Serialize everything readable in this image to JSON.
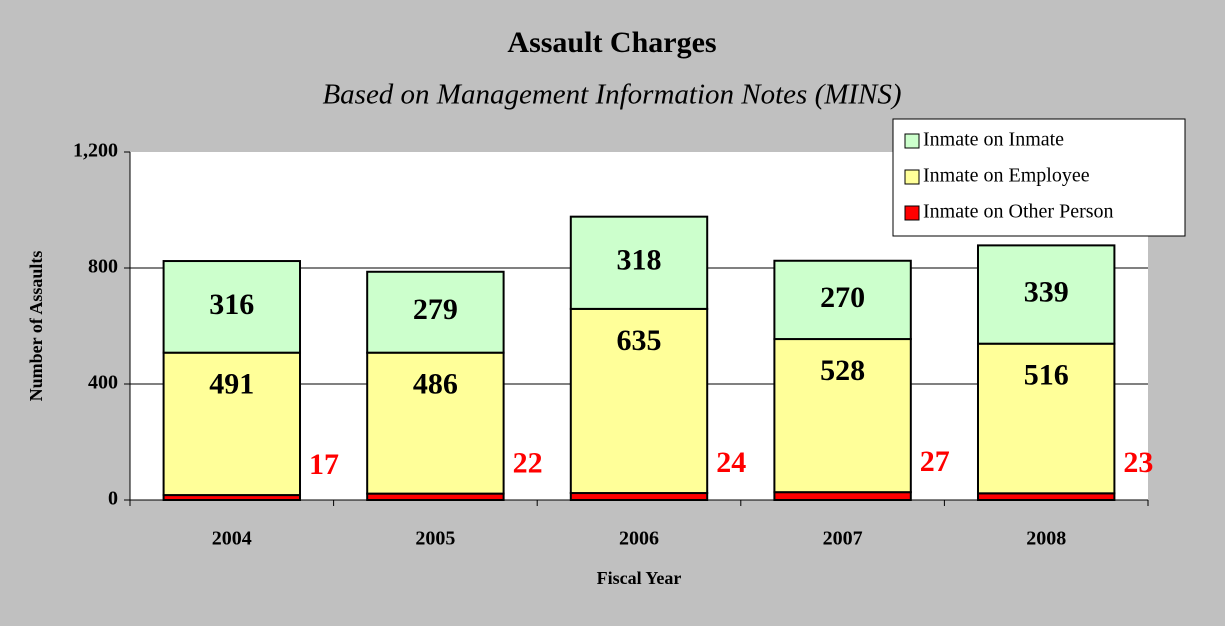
{
  "chart_data": {
    "type": "stacked_bar",
    "title": "Assault Charges",
    "subtitle": "Based on Management Information Notes (MINS)",
    "x_label": "Fiscal Year",
    "y_label": "Number of Assaults",
    "categories": [
      "2004",
      "2005",
      "2006",
      "2007",
      "2008"
    ],
    "series": [
      {
        "name": "Inmate on Other Person",
        "color": "#ff0000",
        "label_color": "#ff0000",
        "values": [
          17,
          22,
          24,
          27,
          23
        ]
      },
      {
        "name": "Inmate on Employee",
        "color": "#ffff99",
        "label_color": "#000000",
        "values": [
          491,
          486,
          635,
          528,
          516
        ]
      },
      {
        "name": "Inmate on Inmate",
        "color": "#ccffcc",
        "label_color": "#000000",
        "values": [
          316,
          279,
          318,
          270,
          339
        ]
      }
    ],
    "ylim": [
      0,
      1200
    ],
    "yticks": [
      0,
      400,
      800,
      {
        "value": 1200,
        "label": "1,200"
      }
    ],
    "grid": true,
    "legend": "top-right"
  }
}
